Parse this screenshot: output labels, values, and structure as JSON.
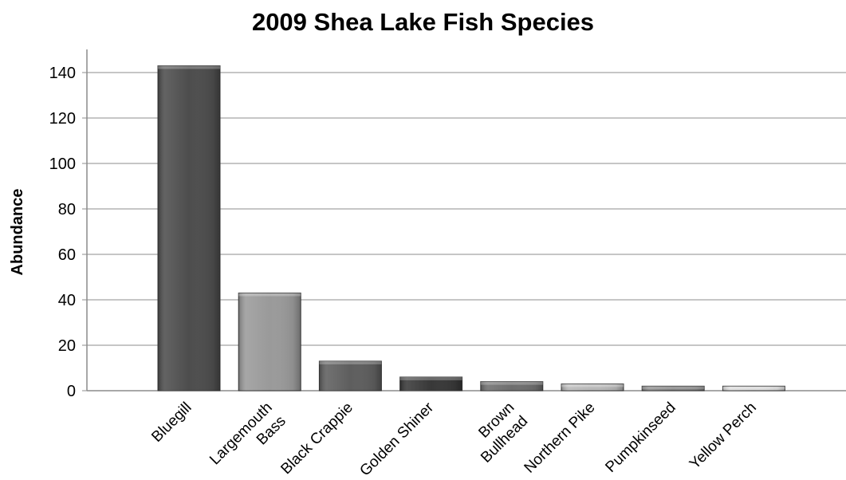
{
  "chart_data": {
    "type": "bar",
    "title": "2009 Shea Lake Fish Species",
    "xlabel": "",
    "ylabel": "Abundance",
    "categories": [
      [
        "Bluegill"
      ],
      [
        "Largemouth",
        "Bass"
      ],
      [
        "Black Crappie"
      ],
      [
        "Golden Shiner"
      ],
      [
        "Brown",
        "Bullhead"
      ],
      [
        "Northern Pike"
      ],
      [
        "Pumpkinseed"
      ],
      [
        "Yellow Perch"
      ]
    ],
    "values": [
      143,
      43,
      13,
      6,
      4,
      3,
      2,
      2
    ],
    "ylim": [
      0,
      140
    ],
    "yticks": [
      0,
      20,
      40,
      60,
      80,
      100,
      120,
      140
    ],
    "grid": true,
    "legend": "none",
    "bar_colors": [
      "#4d4d4d",
      "#9a9a9a",
      "#5e5e5e",
      "#383838",
      "#6e6e6e",
      "#b8b8b8",
      "#7a7a7a",
      "#d6d6d6"
    ]
  }
}
